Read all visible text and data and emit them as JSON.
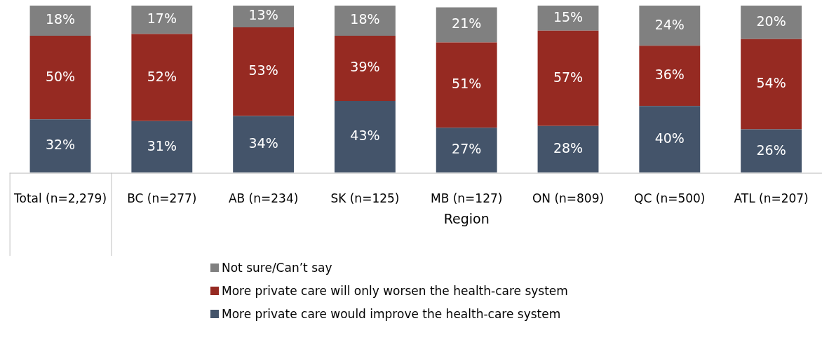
{
  "chart_data": {
    "type": "bar",
    "stacked": true,
    "categories": [
      "Total (n=2,279)",
      "BC (n=277)",
      "AB (n=234)",
      "SK (n=125)",
      "MB (n=127)",
      "ON (n=809)",
      "QC (n=500)",
      "ATL (n=207)"
    ],
    "ylim": [
      0,
      100
    ],
    "series": [
      {
        "name": "More private care would improve the health-care system",
        "color": "#44546a",
        "values": [
          32,
          31,
          34,
          43,
          27,
          28,
          40,
          26
        ],
        "value_labels": [
          "32%",
          "31%",
          "34%",
          "43%",
          "27%",
          "28%",
          "40%",
          "26%"
        ]
      },
      {
        "name": "More private care will only worsen the health-care system",
        "color": "#962a22",
        "values": [
          50,
          52,
          53,
          39,
          51,
          57,
          36,
          54
        ],
        "value_labels": [
          "50%",
          "52%",
          "53%",
          "39%",
          "51%",
          "57%",
          "36%",
          "54%"
        ]
      },
      {
        "name": "Not sure/Can’t say",
        "color": "#808080",
        "values": [
          18,
          17,
          13,
          18,
          21,
          15,
          24,
          20
        ],
        "value_labels": [
          "18%",
          "17%",
          "13%",
          "18%",
          "21%",
          "15%",
          "24%",
          "20%"
        ]
      }
    ],
    "annotations": [
      "Region"
    ],
    "legend": "bottom",
    "grid": false
  }
}
